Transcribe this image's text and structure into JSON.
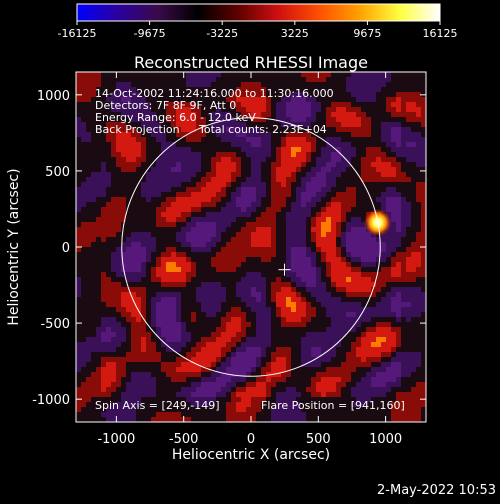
{
  "colorbar": {
    "ticks": [
      "-16125",
      "-9675",
      "-3225",
      "3225",
      "9675",
      "16125"
    ],
    "range": [
      -16125,
      16125
    ],
    "stops": [
      "#0000ff",
      "#2a00a0",
      "#3a0a4a",
      "#000000",
      "#600000",
      "#d01010",
      "#ff5000",
      "#ffa000",
      "#ffff40",
      "#ffffff"
    ]
  },
  "chart_data": {
    "type": "heatmap",
    "title": "Reconstructed RHESSI Image",
    "xlabel": "Heliocentric X (arcsec)",
    "ylabel": "Heliocentric Y (arcsec)",
    "xlim": [
      -1300,
      1300
    ],
    "ylim": [
      -1150,
      1150
    ],
    "xticks": [
      "-1000",
      "-500",
      "0",
      "500",
      "1000"
    ],
    "xtick_values": [
      -1000,
      -500,
      0,
      500,
      1000
    ],
    "yticks": [
      "1000",
      "500",
      "0",
      "-500",
      "-1000"
    ],
    "ytick_values": [
      1000,
      500,
      0,
      -500,
      -1000
    ],
    "solar_radius": 960,
    "spin_axis_marker": {
      "x": 249,
      "y": -149
    },
    "flare_source": {
      "x": 941,
      "y": 160
    },
    "annotations": {
      "line1": "14-Oct-2002 11:24:16.000 to 11:30:16.000",
      "line2": "Detectors: 7F 8F 9F, Att 0",
      "line3": "Energy Range: 6.0 - 12.0 keV",
      "line4a": "Back Projection",
      "line4b": "Total counts: 2.23E+04",
      "spin_axis": "Spin Axis = [249,-149]",
      "flare_position": "Flare Position = [941,160]"
    }
  },
  "footer": {
    "timestamp": "2-May-2022 10:53"
  }
}
